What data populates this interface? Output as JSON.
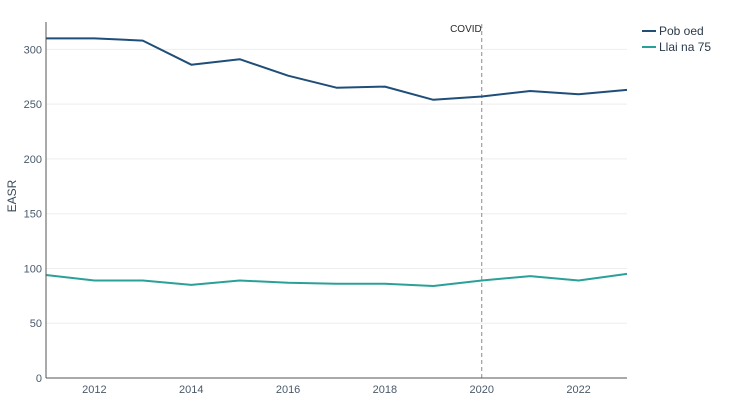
{
  "chart_data": {
    "type": "line",
    "title": "",
    "xlabel": "",
    "ylabel": "EASR",
    "x": [
      2011,
      2012,
      2013,
      2014,
      2015,
      2016,
      2017,
      2018,
      2019,
      2020,
      2021,
      2022,
      2023
    ],
    "xlim": [
      2011,
      2023
    ],
    "ylim": [
      0,
      325
    ],
    "xticks": [
      "2012",
      "2014",
      "2016",
      "2018",
      "2020",
      "2022"
    ],
    "yticks": [
      "0",
      "50",
      "100",
      "150",
      "200",
      "250",
      "300"
    ],
    "grid": true,
    "legend_position": "top-right",
    "series": [
      {
        "name": "Pob oed",
        "color": "#1f4e79",
        "values": [
          310,
          310,
          308,
          286,
          291,
          276,
          265,
          266,
          254,
          257,
          262,
          259,
          263
        ]
      },
      {
        "name": "Llai na 75",
        "color": "#2aa198",
        "values": [
          94,
          89,
          89,
          85,
          89,
          87,
          86,
          86,
          84,
          89,
          93,
          89,
          95
        ]
      }
    ],
    "annotations": [
      {
        "x": 2020,
        "label": "COVID",
        "style": "dashed-vertical-line"
      }
    ]
  }
}
